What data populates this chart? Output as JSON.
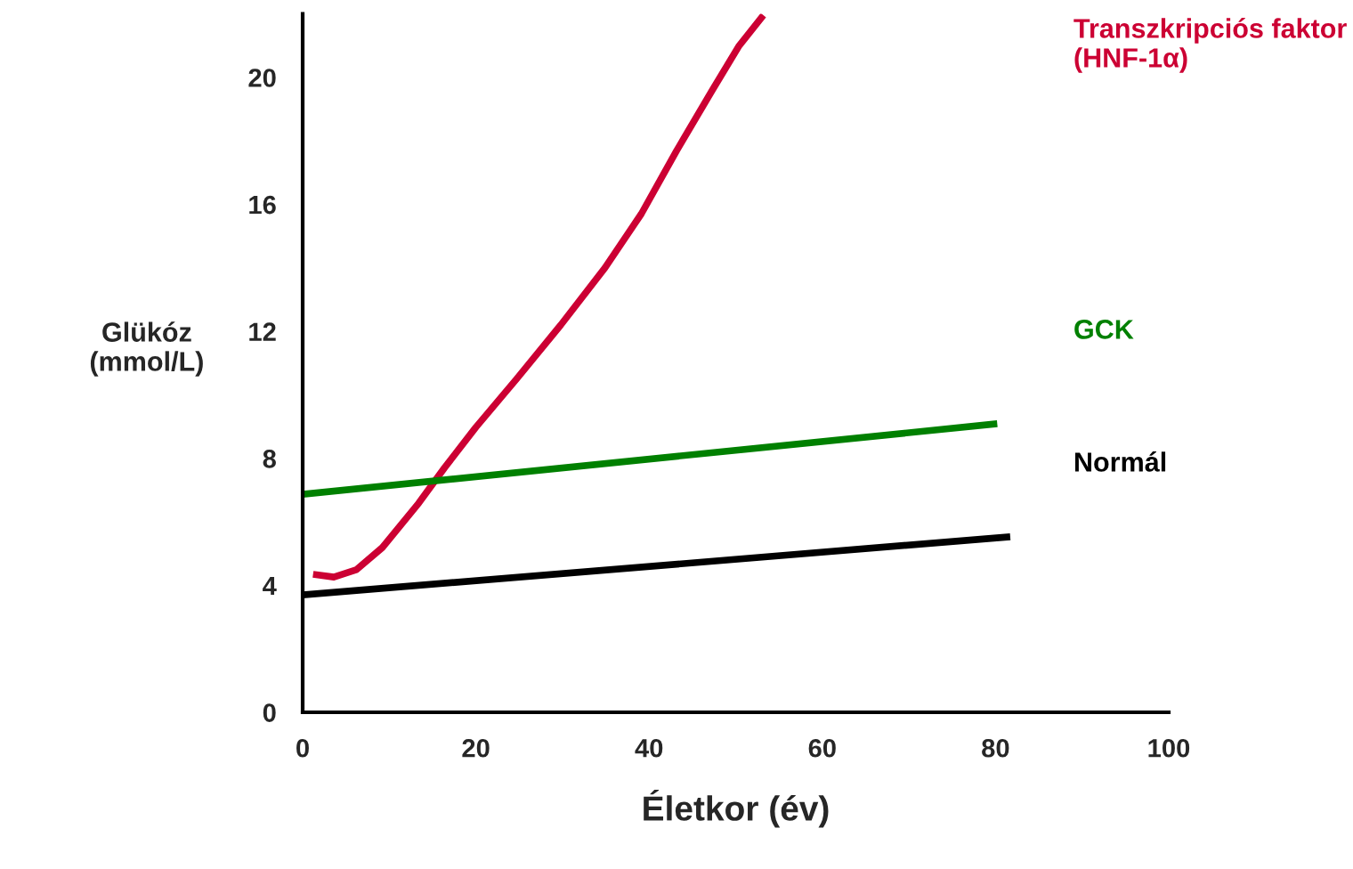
{
  "chart_data": {
    "type": "line",
    "xlabel": "Életkor (év)",
    "ylabel": "Glükóz\n(mmol/L)",
    "xlim": [
      0,
      100
    ],
    "xticks": [
      0,
      20,
      40,
      60,
      80,
      100
    ],
    "ylim": [
      0,
      22
    ],
    "yticks": [
      0,
      4,
      8,
      12,
      16,
      20
    ],
    "grid": false,
    "legend": false,
    "marker": "none",
    "line_style": "solid",
    "series": [
      {
        "name": "Transzkripciós faktor (HNF-1α)",
        "color": "#cc0033",
        "x": [
          1.2,
          3.6,
          6.2,
          9.2,
          13.4,
          16.4,
          20,
          24.7,
          29.8,
          34.9,
          39.1,
          43.2,
          47.3,
          50.4,
          53.2
        ],
        "values": [
          4.35,
          4.26,
          4.49,
          5.19,
          6.59,
          7.71,
          8.98,
          10.5,
          12.2,
          14.0,
          15.7,
          17.7,
          19.6,
          21.0,
          21.96
        ]
      },
      {
        "name": "GCK",
        "color": "#008000",
        "x": [
          0,
          80.2
        ],
        "values": [
          6.87,
          9.09
        ]
      },
      {
        "name": "Normál",
        "color": "#000000",
        "x": [
          0,
          81.7
        ],
        "values": [
          3.7,
          5.53
        ]
      }
    ]
  }
}
